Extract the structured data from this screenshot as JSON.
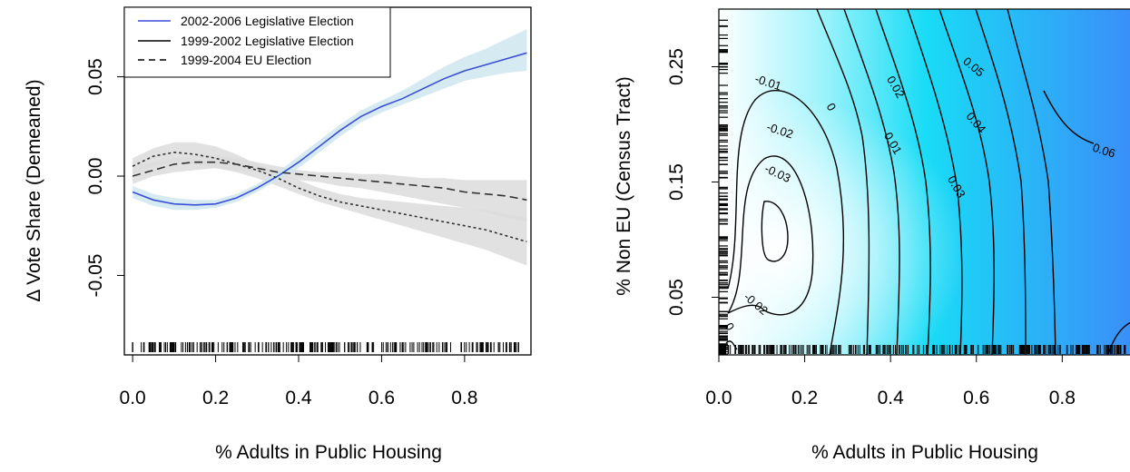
{
  "chart_data": [
    {
      "type": "line",
      "xlabel": "% Adults in Public Housing",
      "ylabel": "Δ Vote Share (Demeaned)",
      "xlim": [
        -0.02,
        0.96
      ],
      "ylim": [
        -0.09,
        0.085
      ],
      "x_ticks": [
        "0.0",
        "0.2",
        "0.4",
        "0.6",
        "0.8"
      ],
      "x_tick_values": [
        0,
        0.2,
        0.4,
        0.6,
        0.8
      ],
      "y_ticks": [
        "-0.05",
        "0.00",
        "0.05"
      ],
      "y_tick_values": [
        -0.05,
        0,
        0.05
      ],
      "legend_position": "top-left",
      "rug_x": [
        0.0,
        0.01,
        0.02,
        0.04,
        0.06,
        0.08
      ],
      "series": [
        {
          "name": "2002-2006 Legislative Election",
          "color": "#3a4fd8",
          "dash": "solid",
          "band_color": "#cfe6f0",
          "x": [
            0.0,
            0.05,
            0.1,
            0.15,
            0.2,
            0.25,
            0.3,
            0.35,
            0.4,
            0.45,
            0.5,
            0.55,
            0.6,
            0.65,
            0.7,
            0.75,
            0.8,
            0.85,
            0.9,
            0.95
          ],
          "y": [
            -0.008,
            -0.012,
            -0.014,
            -0.0145,
            -0.014,
            -0.011,
            -0.006,
            0.0,
            0.007,
            0.015,
            0.023,
            0.03,
            0.035,
            0.039,
            0.044,
            0.049,
            0.053,
            0.056,
            0.059,
            0.062
          ],
          "lower": [
            -0.011,
            -0.015,
            -0.017,
            -0.017,
            -0.016,
            -0.013,
            -0.008,
            -0.002,
            0.004,
            0.012,
            0.02,
            0.027,
            0.032,
            0.036,
            0.04,
            0.044,
            0.048,
            0.05,
            0.052,
            0.053
          ],
          "upper": [
            -0.005,
            -0.009,
            -0.011,
            -0.012,
            -0.012,
            -0.009,
            -0.004,
            0.002,
            0.01,
            0.018,
            0.026,
            0.033,
            0.038,
            0.043,
            0.049,
            0.055,
            0.06,
            0.064,
            0.069,
            0.074
          ]
        },
        {
          "name": "1999-2002 Legislative Election",
          "color": "#333333",
          "dash": "dotted",
          "band_color": "#dcdcdc",
          "x": [
            0.0,
            0.05,
            0.1,
            0.15,
            0.2,
            0.25,
            0.3,
            0.35,
            0.4,
            0.45,
            0.5,
            0.55,
            0.6,
            0.65,
            0.7,
            0.75,
            0.8,
            0.85,
            0.9,
            0.95
          ],
          "y": [
            0.005,
            0.01,
            0.012,
            0.011,
            0.009,
            0.006,
            0.003,
            -0.001,
            -0.006,
            -0.01,
            -0.013,
            -0.015,
            -0.017,
            -0.019,
            -0.021,
            -0.023,
            -0.025,
            -0.027,
            -0.03,
            -0.033
          ],
          "lower": [
            0.001,
            0.005,
            0.007,
            0.006,
            0.004,
            0.002,
            -0.001,
            -0.005,
            -0.009,
            -0.013,
            -0.016,
            -0.019,
            -0.022,
            -0.025,
            -0.028,
            -0.031,
            -0.034,
            -0.037,
            -0.041,
            -0.045
          ],
          "upper": [
            0.009,
            0.014,
            0.017,
            0.017,
            0.015,
            0.011,
            0.006,
            0.002,
            -0.002,
            -0.006,
            -0.009,
            -0.011,
            -0.012,
            -0.013,
            -0.014,
            -0.015,
            -0.016,
            -0.017,
            -0.019,
            -0.021
          ]
        },
        {
          "name": "1999-2004 EU Election",
          "color": "#333333",
          "dash": "dashed",
          "band_color": "#dcdcdc",
          "x": [
            0.0,
            0.05,
            0.1,
            0.15,
            0.2,
            0.25,
            0.3,
            0.35,
            0.4,
            0.45,
            0.5,
            0.55,
            0.6,
            0.65,
            0.7,
            0.75,
            0.8,
            0.85,
            0.9,
            0.95
          ],
          "y": [
            0.0,
            0.003,
            0.006,
            0.007,
            0.007,
            0.006,
            0.004,
            0.002,
            0.001,
            0.0,
            -0.001,
            -0.002,
            -0.003,
            -0.004,
            -0.005,
            -0.006,
            -0.008,
            -0.009,
            -0.01,
            -0.012
          ],
          "lower": [
            -0.004,
            0.0,
            0.002,
            0.003,
            0.004,
            0.003,
            0.002,
            0.0,
            -0.002,
            -0.003,
            -0.005,
            -0.006,
            -0.008,
            -0.01,
            -0.012,
            -0.014,
            -0.016,
            -0.018,
            -0.021,
            -0.023
          ],
          "upper": [
            0.005,
            0.007,
            0.009,
            0.01,
            0.011,
            0.009,
            0.007,
            0.005,
            0.003,
            0.002,
            0.002,
            0.001,
            0.001,
            0.0,
            -0.001,
            -0.001,
            -0.002,
            -0.002,
            -0.002,
            -0.002
          ]
        }
      ]
    },
    {
      "type": "heatmap",
      "xlabel": "% Adults in Public Housing",
      "ylabel": "% Non EU (Census Tract)",
      "xlim": [
        0.0,
        0.96
      ],
      "ylim": [
        0.0,
        0.3
      ],
      "x_ticks": [
        "0.0",
        "0.2",
        "0.4",
        "0.6",
        "0.8"
      ],
      "x_tick_values": [
        0,
        0.2,
        0.4,
        0.6,
        0.8
      ],
      "y_ticks": [
        "0.05",
        "0.15",
        "0.25"
      ],
      "y_tick_values": [
        0.05,
        0.15,
        0.25
      ],
      "color_low": "#ffffff",
      "color_mid": "#19dcf6",
      "color_high": "#3a8ff8",
      "contour_labels": [
        "-0.01",
        "0",
        "0.02",
        "0.05",
        "0.04",
        "0.06",
        "-0.02",
        "0.01",
        "-0.03",
        "0.03",
        "-0.02",
        "0"
      ]
    }
  ]
}
